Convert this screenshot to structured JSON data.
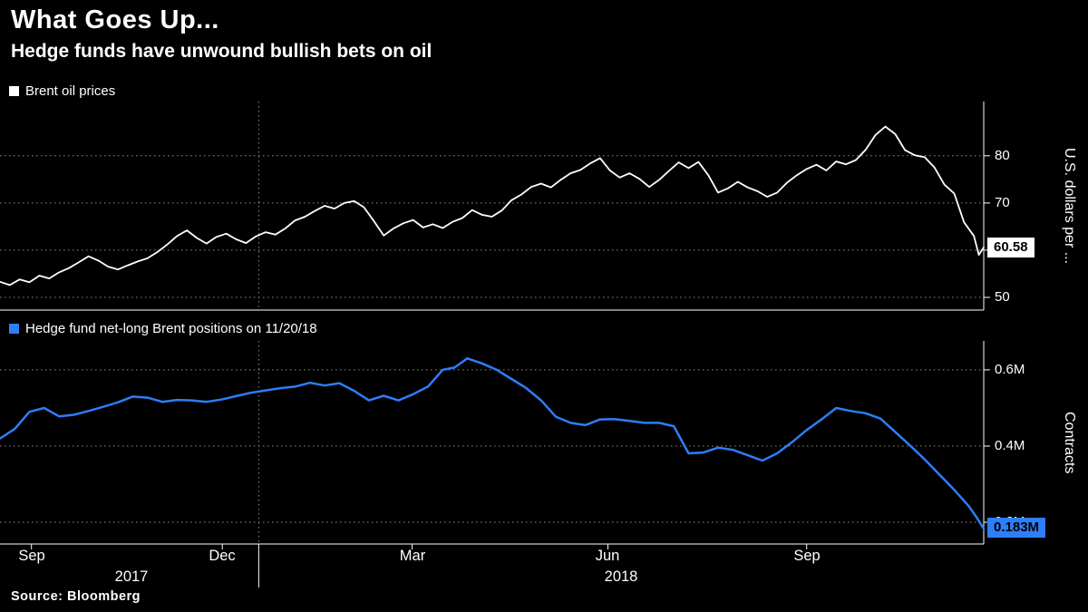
{
  "header": {
    "title": "What Goes Up...",
    "subtitle": "Hedge funds have unwound bullish bets on oil"
  },
  "source": "Source: Bloomberg",
  "colors": {
    "background": "#000000",
    "text": "#ffffff",
    "axis": "#ffffff",
    "grid": "#8f8f8f",
    "brent_line": "#ffffff",
    "positions_line": "#2d7ef7",
    "badge_brent_bg": "#ffffff",
    "badge_brent_fg": "#000000",
    "badge_positions_bg": "#2d7ef7",
    "badge_positions_fg": "#000000"
  },
  "top_chart": {
    "legend": "Brent oil prices",
    "axis_title": "U.S. dollars per ...",
    "y_ticks": [
      "80",
      "70",
      "60",
      "50"
    ],
    "last_value_label": "60.58"
  },
  "bottom_chart": {
    "legend": "Hedge fund net-long Brent positions on 11/20/18",
    "axis_title": "Contracts",
    "y_ticks": [
      "0.6M",
      "0.4M",
      "0.2M"
    ],
    "last_value_label": "0.183M"
  },
  "x_axis": {
    "tick_labels": [
      "Sep",
      "Dec",
      "Mar",
      "Jun",
      "Sep"
    ],
    "tick_pct": [
      3.2,
      22.6,
      41.9,
      61.8,
      82.0
    ],
    "year_labels": [
      "2017",
      "2018"
    ],
    "year_divider_pct": 26.3
  },
  "chart_data": [
    {
      "type": "line",
      "title": "Brent oil prices",
      "ylabel": "U.S. dollars per ...",
      "unit": "U.S. dollars per barrel",
      "x_range": "mid-Aug 2017 to late Nov 2018 (percent of axis)",
      "ylim": [
        47.3,
        91.5
      ],
      "yticks": [
        50,
        60,
        70,
        80
      ],
      "ytick_labels": [
        "50",
        "60",
        "70",
        "80"
      ],
      "grid": "dotted",
      "legend_position": "top-left",
      "last_value": 60.58,
      "x_pct": [
        0,
        1,
        2,
        3,
        4,
        5,
        6,
        7,
        8,
        9,
        10,
        11,
        12,
        13,
        14,
        15,
        16,
        17,
        18,
        19,
        20,
        21,
        22,
        23,
        24,
        25,
        26,
        27,
        28,
        29,
        30,
        31,
        32,
        33,
        34,
        35,
        36,
        37,
        38,
        39,
        40,
        41,
        42,
        43,
        44,
        45,
        46,
        47,
        48,
        49,
        50,
        51,
        52,
        53,
        54,
        55,
        56,
        57,
        58,
        59,
        60,
        61,
        62,
        63,
        64,
        65,
        66,
        67,
        68,
        69,
        70,
        71,
        72,
        73,
        74,
        75,
        76,
        77,
        78,
        79,
        80,
        81,
        82,
        83,
        84,
        85,
        86,
        87,
        88,
        89,
        90,
        91,
        92,
        93,
        94,
        95,
        96,
        97,
        98,
        99,
        99.5,
        100
      ],
      "values": [
        53.3,
        52.6,
        53.8,
        53.2,
        54.6,
        54.0,
        55.3,
        56.2,
        57.4,
        58.7,
        57.8,
        56.5,
        55.9,
        56.8,
        57.6,
        58.3,
        59.6,
        61.2,
        63.0,
        64.2,
        62.6,
        61.4,
        62.8,
        63.5,
        62.3,
        61.5,
        62.9,
        63.8,
        63.3,
        64.6,
        66.3,
        67.1,
        68.3,
        69.4,
        68.8,
        70.0,
        70.4,
        69.1,
        66.2,
        63.1,
        64.6,
        65.7,
        66.4,
        64.8,
        65.5,
        64.7,
        66.0,
        66.8,
        68.5,
        67.5,
        67.1,
        68.4,
        70.6,
        71.8,
        73.4,
        74.1,
        73.3,
        74.9,
        76.3,
        77.0,
        78.4,
        79.5,
        76.9,
        75.4,
        76.3,
        75.1,
        73.4,
        74.9,
        76.8,
        78.6,
        77.4,
        78.7,
        75.9,
        72.2,
        73.1,
        74.5,
        73.3,
        72.5,
        71.3,
        72.2,
        74.3,
        75.9,
        77.2,
        78.1,
        76.9,
        78.8,
        78.2,
        79.1,
        81.3,
        84.4,
        86.2,
        84.6,
        81.2,
        80.1,
        79.7,
        77.5,
        73.9,
        72.0,
        65.9,
        63.0,
        59.0,
        60.58
      ]
    },
    {
      "type": "line",
      "title": "Hedge fund net-long Brent positions on 11/20/18",
      "ylabel": "Contracts",
      "unit": "contracts, millions",
      "x_range": "mid-Aug 2017 to late Nov 2018 (percent of axis)",
      "ylim": [
        0.143,
        0.676
      ],
      "yticks": [
        0.2,
        0.4,
        0.6
      ],
      "ytick_labels": [
        "0.2M",
        "0.4M",
        "0.6M"
      ],
      "grid": "dotted",
      "legend_position": "top-left",
      "last_value": 0.183,
      "x_pct": [
        0,
        1.5,
        3,
        4.5,
        6,
        7.5,
        9,
        10.5,
        12,
        13.5,
        15,
        16.5,
        18,
        19.5,
        21,
        22.5,
        24,
        25.5,
        27,
        28.5,
        30,
        31.5,
        33,
        34.5,
        36,
        37.5,
        39,
        40.5,
        42,
        43.5,
        45,
        46.2,
        47.5,
        49,
        50.5,
        52,
        53.5,
        55,
        56.5,
        58,
        59.5,
        61,
        62.5,
        64,
        65.5,
        67,
        68.5,
        70,
        71.5,
        73,
        74.5,
        76,
        77.5,
        79,
        80.5,
        82,
        83.5,
        85,
        86.5,
        88,
        89.5,
        91,
        92.5,
        94,
        95.5,
        97,
        98.5,
        99.3,
        100
      ],
      "values": [
        0.42,
        0.445,
        0.49,
        0.5,
        0.478,
        0.482,
        0.492,
        0.503,
        0.515,
        0.53,
        0.527,
        0.516,
        0.521,
        0.52,
        0.516,
        0.522,
        0.531,
        0.54,
        0.546,
        0.552,
        0.556,
        0.566,
        0.559,
        0.565,
        0.545,
        0.52,
        0.532,
        0.52,
        0.536,
        0.556,
        0.6,
        0.606,
        0.63,
        0.617,
        0.6,
        0.576,
        0.552,
        0.52,
        0.477,
        0.461,
        0.455,
        0.47,
        0.471,
        0.466,
        0.461,
        0.461,
        0.452,
        0.381,
        0.383,
        0.396,
        0.39,
        0.376,
        0.362,
        0.381,
        0.41,
        0.442,
        0.47,
        0.5,
        0.492,
        0.486,
        0.472,
        0.437,
        0.402,
        0.365,
        0.325,
        0.285,
        0.242,
        0.212,
        0.183
      ]
    }
  ]
}
